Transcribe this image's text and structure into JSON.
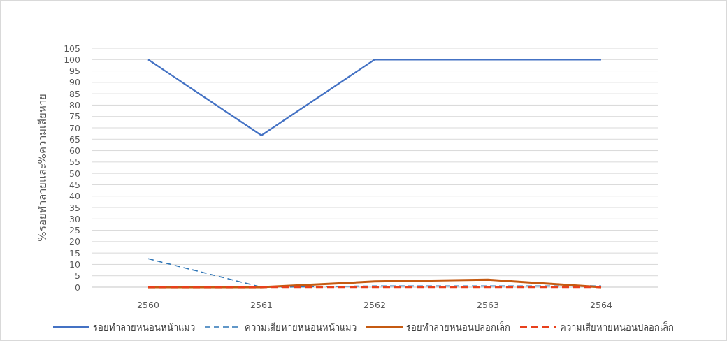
{
  "chart_data": {
    "type": "line",
    "ylabel": "%รอยทำลายและ%ความเสียหาย",
    "categories": [
      "2560",
      "2561",
      "2562",
      "2563",
      "2564"
    ],
    "series": [
      {
        "name": "รอยทำลายหนอนหน้าแมว",
        "color": "#4472c4",
        "line_style": "solid",
        "values": [
          100,
          66.7,
          100,
          100,
          100
        ]
      },
      {
        "name": "ความเสียหายหนอนหน้าแมว",
        "color": "#2e75b6",
        "line_style": "dashed",
        "values": [
          12.5,
          0,
          0.5,
          0.5,
          0.5
        ]
      },
      {
        "name": "รอยทำลายหนอนปลอกเล็ก",
        "color": "#c55a11",
        "line_style": "solid",
        "values": [
          0,
          0,
          2.5,
          3.3,
          0
        ]
      },
      {
        "name": "ความเสียหายหนอนปลอกเล็ก",
        "color": "#e8401c",
        "line_style": "dashed",
        "values": [
          0,
          0,
          0,
          0,
          0
        ]
      }
    ],
    "ylim": [
      0,
      105
    ],
    "yticks": [
      0,
      5,
      10,
      15,
      20,
      25,
      30,
      35,
      40,
      45,
      50,
      55,
      60,
      65,
      70,
      75,
      80,
      85,
      90,
      95,
      100,
      105
    ],
    "grid": "y",
    "legend": "bottom",
    "marker": "none"
  }
}
